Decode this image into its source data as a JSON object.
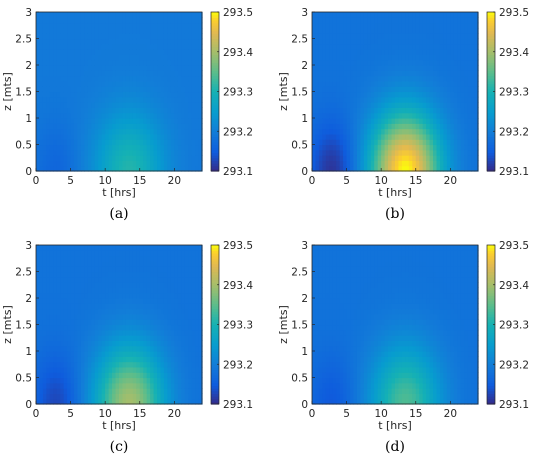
{
  "chart_data": [
    {
      "type": "heatmap",
      "caption": "(a)",
      "xlabel": "t [hrs]",
      "ylabel": "z [mts]",
      "xlim": [
        0,
        24
      ],
      "ylim": [
        0,
        3
      ],
      "xticks": [
        "0",
        "5",
        "10",
        "15",
        "20"
      ],
      "yticks": [
        "0",
        "0.5",
        "1",
        "1.5",
        "2",
        "2.5",
        "3"
      ],
      "colorbar": {
        "range": [
          293.1,
          293.5
        ],
        "ticks": [
          "293.1",
          "293.2",
          "293.3",
          "293.4",
          "293.5"
        ]
      },
      "field": {
        "background": 293.19,
        "peak_value": 293.31,
        "peak_t": 13.5,
        "peak_z": 0.0,
        "cold_value": 293.16,
        "cold_t": 3.0
      }
    },
    {
      "type": "heatmap",
      "caption": "(b)",
      "xlabel": "t [hrs]",
      "ylabel": "z [mts]",
      "xlim": [
        0,
        24
      ],
      "ylim": [
        0,
        3
      ],
      "xticks": [
        "0",
        "5",
        "10",
        "15",
        "20"
      ],
      "yticks": [
        "0",
        "0.5",
        "1",
        "1.5",
        "2",
        "2.5",
        "3"
      ],
      "colorbar": {
        "range": [
          293.1,
          293.5
        ],
        "ticks": [
          "293.1",
          "293.2",
          "293.3",
          "293.4",
          "293.5"
        ]
      },
      "field": {
        "background": 293.18,
        "peak_value": 293.5,
        "peak_t": 13.5,
        "peak_z": 0.0,
        "cold_value": 293.1,
        "cold_t": 3.0
      }
    },
    {
      "type": "heatmap",
      "caption": "(c)",
      "xlabel": "t [hrs]",
      "ylabel": "z [mts]",
      "xlim": [
        0,
        24
      ],
      "ylim": [
        0,
        3
      ],
      "xticks": [
        "0",
        "5",
        "10",
        "15",
        "20"
      ],
      "yticks": [
        "0",
        "0.5",
        "1",
        "1.5",
        "2",
        "2.5",
        "3"
      ],
      "colorbar": {
        "range": [
          293.1,
          293.5
        ],
        "ticks": [
          "293.1",
          "293.2",
          "293.3",
          "293.4",
          "293.5"
        ]
      },
      "field": {
        "background": 293.18,
        "peak_value": 293.4,
        "peak_t": 13.5,
        "peak_z": 0.0,
        "cold_value": 293.12,
        "cold_t": 3.0
      }
    },
    {
      "type": "heatmap",
      "caption": "(d)",
      "xlabel": "t [hrs]",
      "ylabel": "z [mts]",
      "xlim": [
        0,
        24
      ],
      "ylim": [
        0,
        3
      ],
      "xticks": [
        "0",
        "5",
        "10",
        "15",
        "20"
      ],
      "yticks": [
        "0",
        "0.5",
        "1",
        "1.5",
        "2",
        "2.5",
        "3"
      ],
      "colorbar": {
        "range": [
          293.1,
          293.5
        ],
        "ticks": [
          "293.1",
          "293.2",
          "293.3",
          "293.4",
          "293.5"
        ]
      },
      "field": {
        "background": 293.18,
        "peak_value": 293.34,
        "peak_t": 13.5,
        "peak_z": 0.0,
        "cold_value": 293.14,
        "cold_t": 3.0
      }
    }
  ]
}
